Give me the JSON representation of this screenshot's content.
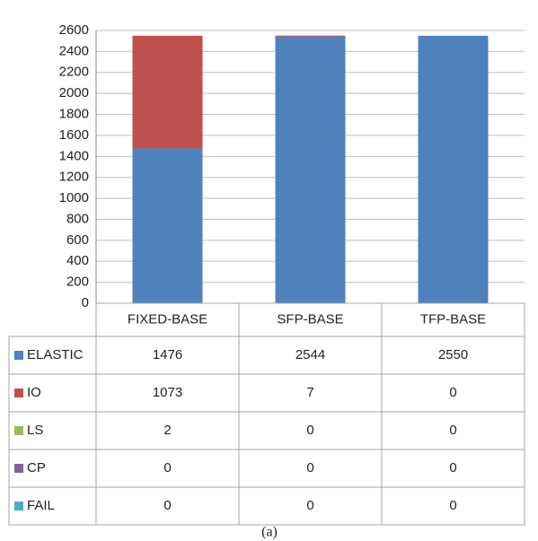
{
  "chart_data": {
    "type": "bar",
    "stacked": true,
    "caption": "(a)",
    "categories": [
      "FIXED-BASE",
      "SFP-BASE",
      "TFP-BASE"
    ],
    "series": [
      {
        "name": "ELASTIC",
        "color": "#4f81bd",
        "values": [
          1476,
          2544,
          2550
        ]
      },
      {
        "name": "IO",
        "color": "#c0504d",
        "values": [
          1073,
          7,
          0
        ]
      },
      {
        "name": "LS",
        "color": "#9bbb59",
        "values": [
          2,
          0,
          0
        ]
      },
      {
        "name": "CP",
        "color": "#8064a2",
        "values": [
          0,
          0,
          0
        ]
      },
      {
        "name": "FAIL",
        "color": "#4bacc6",
        "values": [
          0,
          0,
          0
        ]
      }
    ],
    "ylim": [
      0,
      2600
    ],
    "yticks": [
      0,
      200,
      400,
      600,
      800,
      1000,
      1200,
      1400,
      1600,
      1800,
      2000,
      2200,
      2400,
      2600
    ],
    "grid": true
  }
}
